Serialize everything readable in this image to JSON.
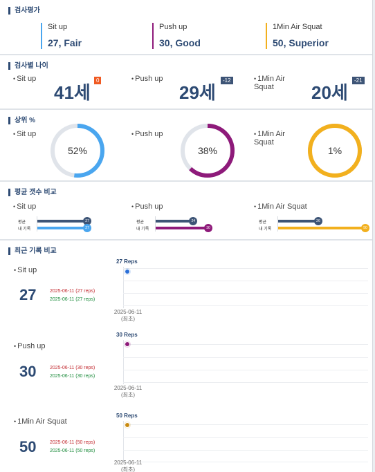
{
  "evaluation": {
    "title": "검사평가",
    "items": [
      {
        "name": "Sit up",
        "value": "27, Fair",
        "color": "#4aa6ef"
      },
      {
        "name": "Push up",
        "value": "30, Good",
        "color": "#8e1a7a"
      },
      {
        "name": "1Min Air Squat",
        "value": "50, Superior",
        "color": "#f2b01e"
      }
    ]
  },
  "age": {
    "title": "검사별 나이",
    "items": [
      {
        "name": "Sit up",
        "age": "41세",
        "diff": "0",
        "badge_color": "#f05a22"
      },
      {
        "name": "Push up",
        "age": "29세",
        "diff": "-12",
        "badge_color": "#3d5476"
      },
      {
        "name": "1Min Air Squat",
        "age": "20세",
        "diff": "-21",
        "badge_color": "#3d5476"
      }
    ]
  },
  "percentile": {
    "title": "상위 %",
    "items": [
      {
        "name": "Sit up",
        "value": "52%",
        "fraction": 0.52,
        "color": "#4aa6ef"
      },
      {
        "name": "Push up",
        "value": "38%",
        "fraction": 0.62,
        "color": "#8e1a7a"
      },
      {
        "name": "1Min Air Squat",
        "value": "1%",
        "fraction": 1.0,
        "color": "#f2b01e"
      }
    ]
  },
  "average": {
    "title": "평균 갯수 비교",
    "avg_label": "평균",
    "mine_label": "내 기록",
    "avg_color": "#3d5476",
    "items": [
      {
        "name": "Sit up",
        "avg": "27",
        "mine": "27",
        "avg_frac": 0.9,
        "mine_frac": 0.9,
        "color": "#4aa6ef"
      },
      {
        "name": "Push up",
        "avg": "24",
        "mine": "30",
        "avg_frac": 0.68,
        "mine_frac": 0.95,
        "color": "#8e1a7a"
      },
      {
        "name": "1Min Air Squat",
        "avg": "26",
        "mine": "50",
        "avg_frac": 0.46,
        "mine_frac": 1.0,
        "color": "#f2b01e"
      }
    ]
  },
  "history": {
    "title": "최근 기록 비교",
    "items": [
      {
        "name": "Sit up",
        "value": "27",
        "line1": "2025-06-11 (27 reps)",
        "line2": "2025-06-11 (27 reps)",
        "reps": "27 Reps",
        "date": "2025-06-11",
        "date_sub": "(최초)",
        "color": "#2a6fd8"
      },
      {
        "name": "Push up",
        "value": "30",
        "line1": "2025-06-11 (30 reps)",
        "line2": "2025-06-11 (30 reps)",
        "reps": "30 Reps",
        "date": "2025-06-11",
        "date_sub": "(최초)",
        "color": "#8e1a7a"
      },
      {
        "name": "1Min Air Squat",
        "value": "50",
        "line1": "2025-06-11 (50 reps)",
        "line2": "2025-06-11 (50 reps)",
        "reps": "50 Reps",
        "date": "2025-06-11",
        "date_sub": "(최초)",
        "color": "#c98a10"
      }
    ]
  }
}
